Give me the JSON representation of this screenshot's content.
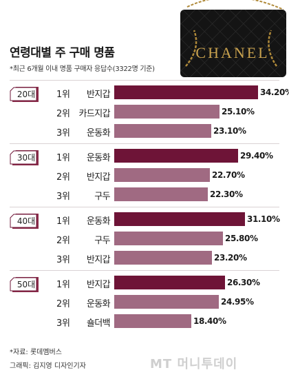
{
  "title": "연령대별 주 구매 명품",
  "subtitle": "*최근 6개월 이내 명품 구매자 응답수(3322명 기준)",
  "bag_logo_text": "CHANEL",
  "colors": {
    "top_bar": "#6e1437",
    "other_bar": "#a06a82",
    "tag_fill": "#ffffff"
  },
  "chart_data": {
    "type": "bar",
    "orientation": "horizontal",
    "unit": "%",
    "xlim": [
      0,
      36
    ],
    "groups": [
      {
        "label": "20대",
        "items": [
          {
            "rank": "1위",
            "name": "반지갑",
            "value": 34.2,
            "value_label": "34.20%"
          },
          {
            "rank": "2위",
            "name": "카드지갑",
            "value": 25.1,
            "value_label": "25.10%"
          },
          {
            "rank": "3위",
            "name": "운동화",
            "value": 23.1,
            "value_label": "23.10%"
          }
        ]
      },
      {
        "label": "30대",
        "items": [
          {
            "rank": "1위",
            "name": "운동화",
            "value": 29.4,
            "value_label": "29.40%"
          },
          {
            "rank": "2위",
            "name": "반지갑",
            "value": 22.7,
            "value_label": "22.70%"
          },
          {
            "rank": "3위",
            "name": "구두",
            "value": 22.3,
            "value_label": "22.30%"
          }
        ]
      },
      {
        "label": "40대",
        "items": [
          {
            "rank": "1위",
            "name": "운동화",
            "value": 31.1,
            "value_label": "31.10%"
          },
          {
            "rank": "2위",
            "name": "구두",
            "value": 25.8,
            "value_label": "25.80%"
          },
          {
            "rank": "3위",
            "name": "반지갑",
            "value": 23.2,
            "value_label": "23.20%"
          }
        ]
      },
      {
        "label": "50대",
        "items": [
          {
            "rank": "1위",
            "name": "반지갑",
            "value": 26.3,
            "value_label": "26.30%"
          },
          {
            "rank": "2위",
            "name": "운동화",
            "value": 24.95,
            "value_label": "24.95%"
          },
          {
            "rank": "3위",
            "name": "숄더백",
            "value": 18.4,
            "value_label": "18.40%"
          }
        ]
      }
    ]
  },
  "source": "*자료: 롯데멤버스",
  "credit": "그래픽: 김지영 디자인기자",
  "brand_watermark": "MT 머니투데이"
}
